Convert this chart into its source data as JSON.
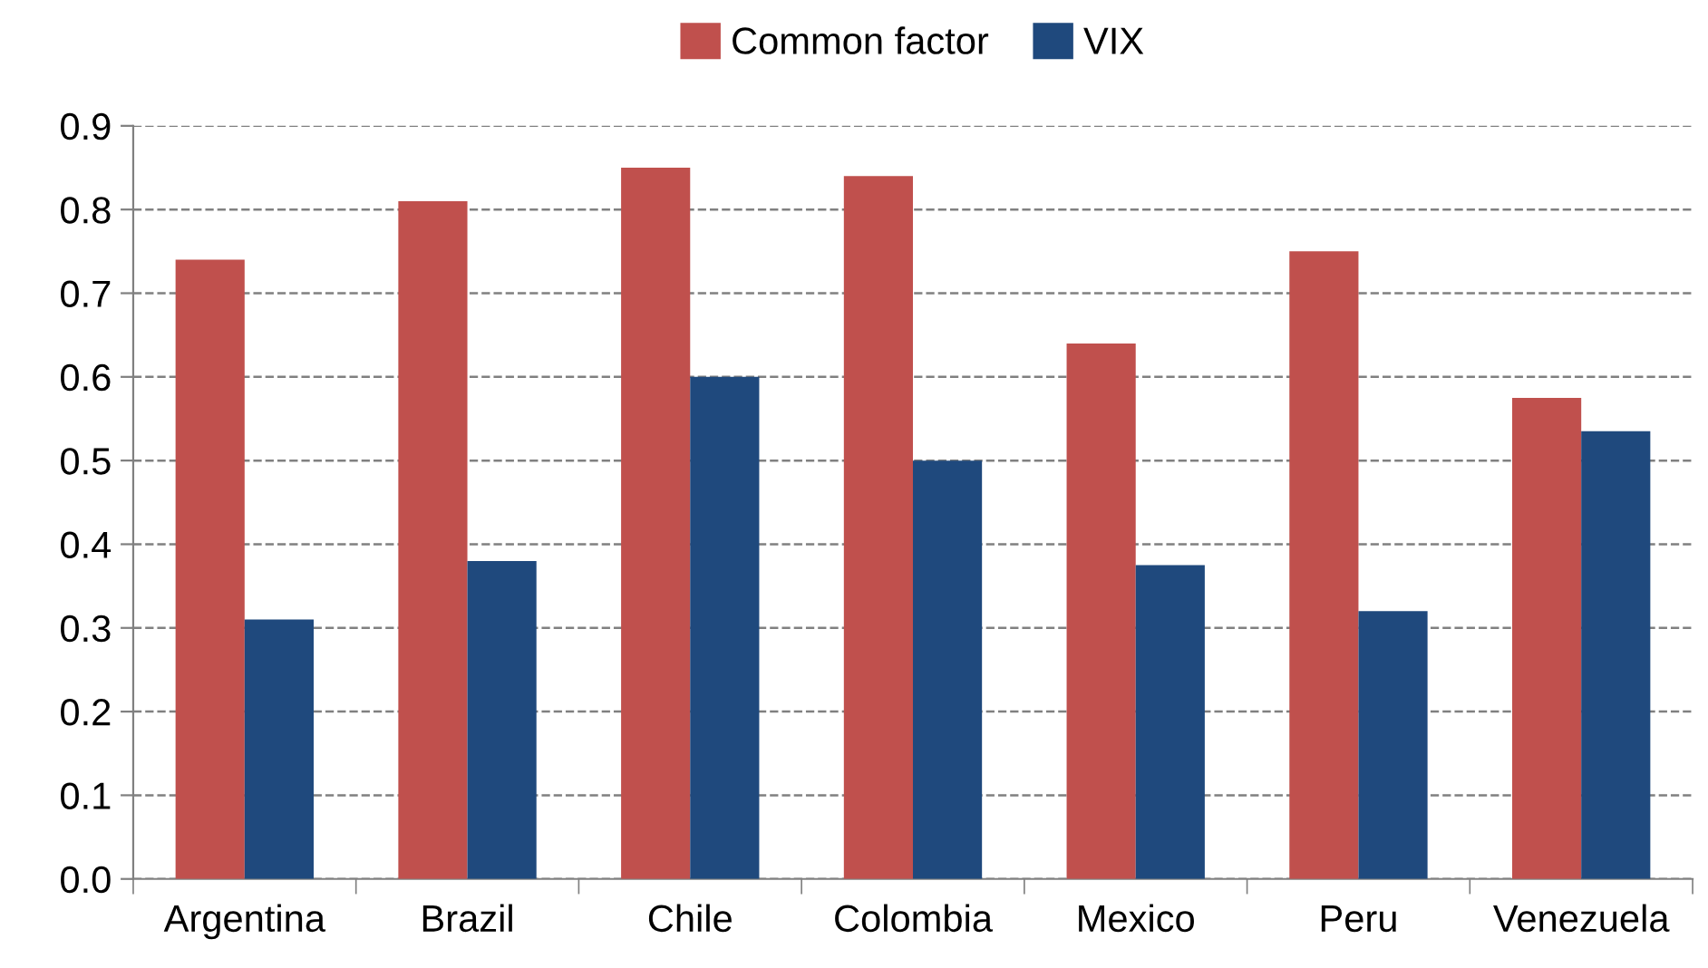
{
  "chart_data": {
    "type": "bar",
    "categories": [
      "Argentina",
      "Brazil",
      "Chile",
      "Colombia",
      "Mexico",
      "Peru",
      "Venezuela"
    ],
    "series": [
      {
        "name": "Common factor",
        "color": "#c0504d",
        "values": [
          0.74,
          0.81,
          0.85,
          0.84,
          0.64,
          0.75,
          0.575
        ]
      },
      {
        "name": "VIX",
        "color": "#1f497d",
        "values": [
          0.31,
          0.38,
          0.6,
          0.5,
          0.375,
          0.32,
          0.535
        ]
      }
    ],
    "ylim": [
      0,
      0.9
    ],
    "yticks": [
      {
        "value": 0,
        "label": "0.0"
      },
      0.1,
      0.2,
      0.3,
      0.4,
      0.5,
      0.6,
      0.7,
      0.8,
      0.9
    ],
    "grid": "y",
    "legend": "top"
  }
}
